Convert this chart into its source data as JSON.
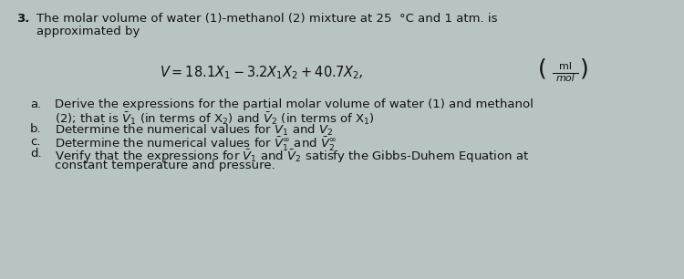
{
  "background_color": "#b8c4c4",
  "text_color": "#111111",
  "fig_width": 7.5,
  "fig_height": 3.06,
  "problem_number": "3.",
  "intro_line1": "The molar volume of water (1)-methanol (2) mixture at 25  °C and 1 atm. is",
  "intro_line2": "approximated by",
  "items": [
    {
      "label": "a.",
      "line1": "Derive the expressions for the partial molar volume of water (1) and methanol",
      "line2": "(2); that is $\\bar{V}_1$ (in terms of X$_2$) and $\\bar{V}_2$ (in terms of X$_1$)"
    },
    {
      "label": "b.",
      "line1": "Determine the numerical values for $V_1$ and $V_2$",
      "line2": null
    },
    {
      "label": "c.",
      "line1": "Determine the numerical values for $\\bar{V}_1^{\\infty}$ and $\\bar{V}_2^{\\infty}$",
      "line2": null
    },
    {
      "label": "d.",
      "line1": "Verify that the expressions for $\\bar{V}_1$ and $\\bar{V}_2$ satisfy the Gibbs-Duhem Equation at",
      "line2": "constant temperature and pressure."
    }
  ]
}
